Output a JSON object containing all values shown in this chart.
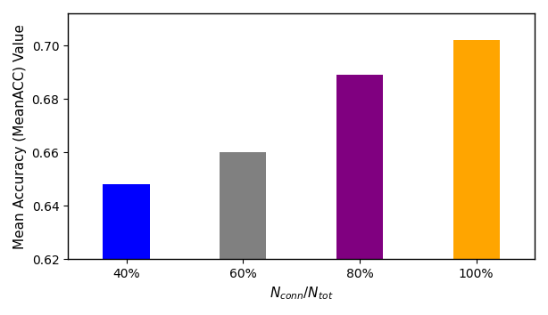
{
  "categories": [
    "40%",
    "60%",
    "80%",
    "100%"
  ],
  "values": [
    0.648,
    0.66,
    0.689,
    0.702
  ],
  "bar_colors": [
    "#0000ff",
    "#808080",
    "#800080",
    "#ffa500"
  ],
  "xlabel": "$N_{conn}/N_{tot}$",
  "ylabel": "Mean Accuracy (MeanACC) Value",
  "ylim": [
    0.62,
    0.712
  ],
  "yticks": [
    0.62,
    0.64,
    0.66,
    0.68,
    0.7
  ],
  "background_color": "#ffffff",
  "bar_width": 0.4,
  "label_fontsize": 11,
  "tick_fontsize": 10
}
